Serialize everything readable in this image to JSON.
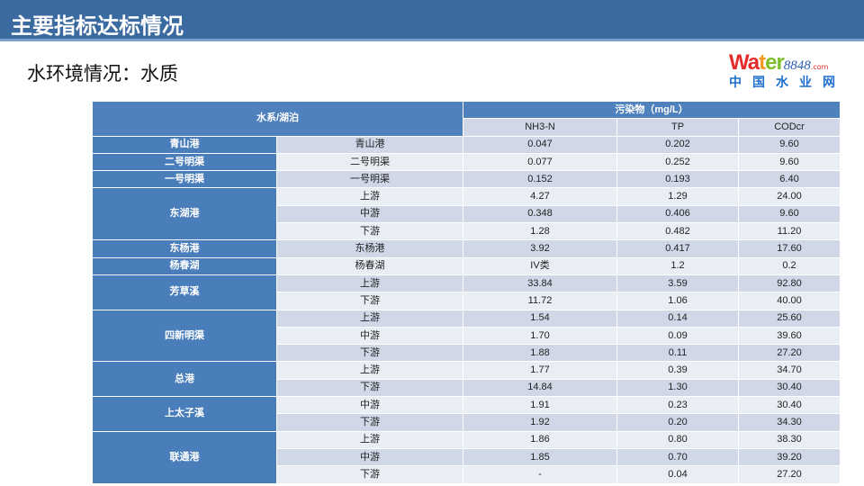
{
  "title": "主要指标达标情况",
  "subtitle": "水环境情况：水质",
  "table": {
    "header_group": "水系/湖泊",
    "header_pollutants": "污染物（mg/L）",
    "columns": [
      "NH3-N",
      "TP",
      "CODcr"
    ],
    "groups": [
      {
        "name": "青山港",
        "rows": [
          [
            "青山港",
            "0.047",
            "0.202",
            "9.60"
          ]
        ]
      },
      {
        "name": "二号明渠",
        "rows": [
          [
            "二号明渠",
            "0.077",
            "0.252",
            "9.60"
          ]
        ]
      },
      {
        "name": "一号明渠",
        "rows": [
          [
            "一号明渠",
            "0.152",
            "0.193",
            "6.40"
          ]
        ]
      },
      {
        "name": "东湖港",
        "rows": [
          [
            "上游",
            "4.27",
            "1.29",
            "24.00"
          ],
          [
            "中游",
            "0.348",
            "0.406",
            "9.60"
          ],
          [
            "下游",
            "1.28",
            "0.482",
            "11.20"
          ]
        ]
      },
      {
        "name": "东杨港",
        "rows": [
          [
            "东杨港",
            "3.92",
            "0.417",
            "17.60"
          ]
        ]
      },
      {
        "name": "杨春湖",
        "rows": [
          [
            "杨春湖",
            "IV类",
            "1.2",
            "0.2"
          ]
        ]
      },
      {
        "name": "芳草溪",
        "rows": [
          [
            "上游",
            "33.84",
            "3.59",
            "92.80"
          ],
          [
            "下游",
            "11.72",
            "1.06",
            "40.00"
          ]
        ]
      },
      {
        "name": "四新明渠",
        "rows": [
          [
            "上游",
            "1.54",
            "0.14",
            "25.60"
          ],
          [
            "中游",
            "1.70",
            "0.09",
            "39.60"
          ],
          [
            "下游",
            "1.88",
            "0.11",
            "27.20"
          ]
        ]
      },
      {
        "name": "总港",
        "rows": [
          [
            "上游",
            "1.77",
            "0.39",
            "34.70"
          ],
          [
            "下游",
            "14.84",
            "1.30",
            "30.40"
          ]
        ]
      },
      {
        "name": "上太子溪",
        "rows": [
          [
            "中游",
            "1.91",
            "0.23",
            "30.40"
          ],
          [
            "下游",
            "1.92",
            "0.20",
            "34.30"
          ]
        ]
      },
      {
        "name": "联通港",
        "rows": [
          [
            "上游",
            "1.86",
            "0.80",
            "38.30"
          ],
          [
            "中游",
            "1.85",
            "0.70",
            "39.20"
          ],
          [
            "下游",
            "-",
            "0.04",
            "27.20"
          ]
        ]
      }
    ]
  },
  "watermark": {
    "brand": "Water8848.com",
    "cn": "中国水业网"
  }
}
